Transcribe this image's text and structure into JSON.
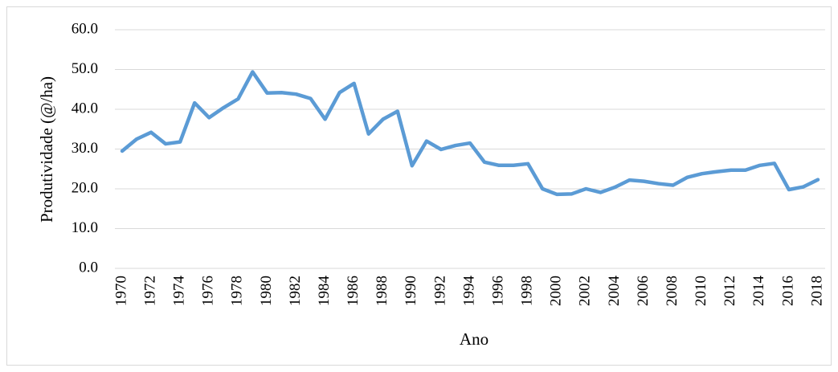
{
  "chart_data": {
    "type": "line",
    "x_label": "Ano",
    "y_label": "Produtividade (@/ha)",
    "categories": [
      "1970",
      null,
      "1972",
      null,
      "1974",
      null,
      "1976",
      null,
      "1978",
      null,
      "1980",
      null,
      "1982",
      null,
      "1984",
      null,
      "1986",
      null,
      "1988",
      null,
      "1990",
      null,
      "1992",
      null,
      "1994",
      null,
      "1996",
      null,
      "1998",
      null,
      "2000",
      null,
      "2002",
      null,
      "2004",
      null,
      "2006",
      null,
      "2008",
      null,
      "2010",
      null,
      "2012",
      null,
      "2014",
      null,
      "2016",
      null,
      "2018"
    ],
    "series": [
      {
        "name": "Produtividade",
        "color": "#5b9bd5",
        "values": [
          29.5,
          32.5,
          34.2,
          31.3,
          31.8,
          41.6,
          37.9,
          40.4,
          42.6,
          49.4,
          44.1,
          44.2,
          43.8,
          42.7,
          37.5,
          44.2,
          46.5,
          33.8,
          37.5,
          39.5,
          25.8,
          32.0,
          29.9,
          30.9,
          31.5,
          26.7,
          25.9,
          25.9,
          26.3,
          20.0,
          18.6,
          18.7,
          20.0,
          19.1,
          20.4,
          22.2,
          21.9,
          21.3,
          20.9,
          22.9,
          23.8,
          24.3,
          24.7,
          24.7,
          25.9,
          26.4,
          19.8,
          20.5,
          22.3
        ]
      }
    ],
    "ylim": [
      0,
      60
    ],
    "yticks": [
      {
        "value": 0,
        "label": "0.0"
      },
      {
        "value": 10,
        "label": "10.0"
      },
      {
        "value": 20,
        "label": "20.0"
      },
      {
        "value": 30,
        "label": "30.0"
      },
      {
        "value": 40,
        "label": "40.0"
      },
      {
        "value": 50,
        "label": "50.0"
      },
      {
        "value": 60,
        "label": "60.0"
      }
    ],
    "grid": true
  }
}
